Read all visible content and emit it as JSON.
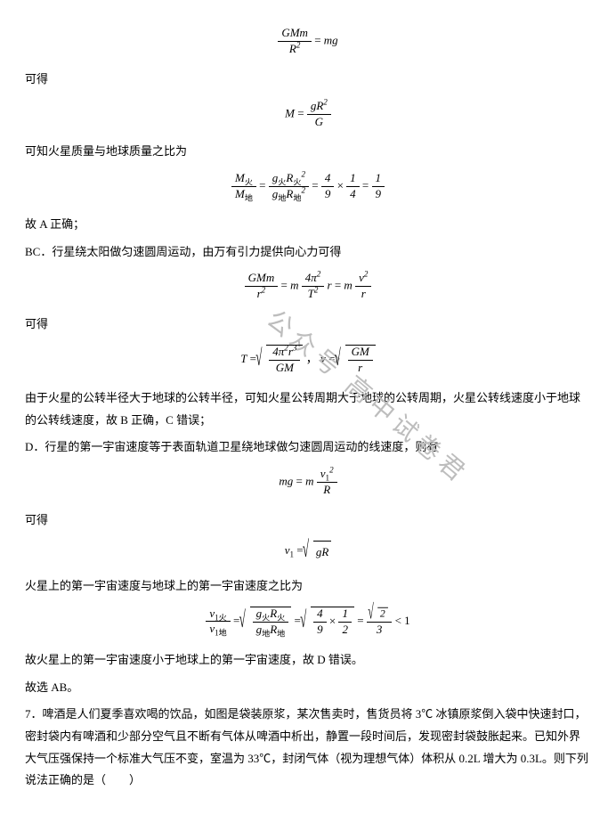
{
  "watermark": "公众号 高中试卷君",
  "p1": "可得",
  "p2": "可知火星质量与地球质量之比为",
  "p3": "故 A 正确；",
  "p4": "BC．行星绕太阳做匀速圆周运动，由万有引力提供向心力可得",
  "p5": "可得",
  "p6": "由于火星的公转半径大于地球的公转半径，可知火星公转周期大于地球的公转周期，火星公转线速度小于地球的公转线速度，故 B 正确，C 错误；",
  "p7": "D．行星的第一宇宙速度等于表面轨道卫星绕地球做匀速圆周运动的线速度，则有",
  "p8": "可得",
  "p9": "火星上的第一宇宙速度与地球上的第一宇宙速度之比为",
  "p10": "故火星上的第一宇宙速度小于地球上的第一宇宙速度，故 D 错误。",
  "p11": "故选 AB。",
  "p12": "7．啤酒是人们夏季喜欢喝的饮品，如图是袋装原浆，某次售卖时，售货员将 3℃ 冰镇原浆倒入袋中快速封口，密封袋内有啤酒和少部分空气且不断有气体从啤酒中析出，静置一段时间后，发现密封袋鼓胀起来。已知外界大气压强保持一个标准大气压不变，室温为 33℃，封闭气体（视为理想气体）体积从 0.2L 增大为 0.3L。则下列说法正确的是（　　）",
  "eq1": {
    "lhs_num": "GMm",
    "lhs_den": "R",
    "rhs": "mg"
  },
  "eq2": {
    "lhs": "M",
    "num": "gR",
    "den": "G"
  },
  "eq3": {
    "frac1_num": "M",
    "frac1_den": "M",
    "frac2_num": "g",
    "frac2_den": "g",
    "r1_num": "4",
    "r1_den": "9",
    "r2_num": "1",
    "r2_den": "4",
    "r3_num": "1",
    "r3_den": "9"
  },
  "eq4": {
    "lhs_num": "GMm",
    "lhs_den": "r",
    "mid_num": "4π",
    "mid_den": "T",
    "r": "r",
    "rhs_num": "v",
    "rhs_den": "r"
  },
  "eq5": {
    "t": "T",
    "t_num": "4π",
    "t_den": "GM",
    "v": "v",
    "v_num": "GM",
    "v_den": "r"
  },
  "eq6": {
    "lhs": "mg",
    "num": "v",
    "den": "R"
  },
  "eq7": {
    "v1": "v",
    "rhs": "gR"
  },
  "eq8": {
    "lhs_num": "v",
    "lhs_den": "v",
    "mid_num": "g",
    "mid_den": "g",
    "f1_num": "4",
    "f1_den": "9",
    "f2_num": "1",
    "f2_den": "2",
    "res_num": "2",
    "res_den": "3",
    "tail": "< 1"
  },
  "sub_h": "火",
  "sub_d": "地",
  "sub1": "1",
  "sub1h": "1火",
  "sub1d": "1地"
}
